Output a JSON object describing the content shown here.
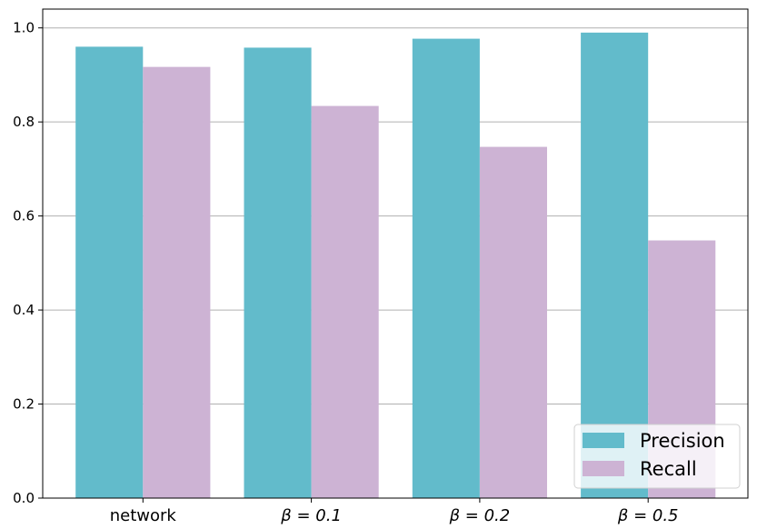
{
  "chart_data": {
    "type": "bar",
    "categories": [
      "network",
      "β = 0.1",
      "β = 0.2",
      "β = 0.5"
    ],
    "series": [
      {
        "name": "Precision",
        "values": [
          0.96,
          0.958,
          0.977,
          0.99
        ],
        "color": "#62bbcb"
      },
      {
        "name": "Recall",
        "values": [
          0.917,
          0.834,
          0.747,
          0.548
        ],
        "color": "#cdb3d4"
      }
    ],
    "y_ticks": [
      "0.0",
      "0.2",
      "0.4",
      "0.6",
      "0.8",
      "1.0"
    ],
    "ylim": [
      0,
      1.04
    ],
    "grid": "horizontal",
    "legend_position": "bottom-right",
    "title": "",
    "xlabel": "",
    "ylabel": ""
  }
}
